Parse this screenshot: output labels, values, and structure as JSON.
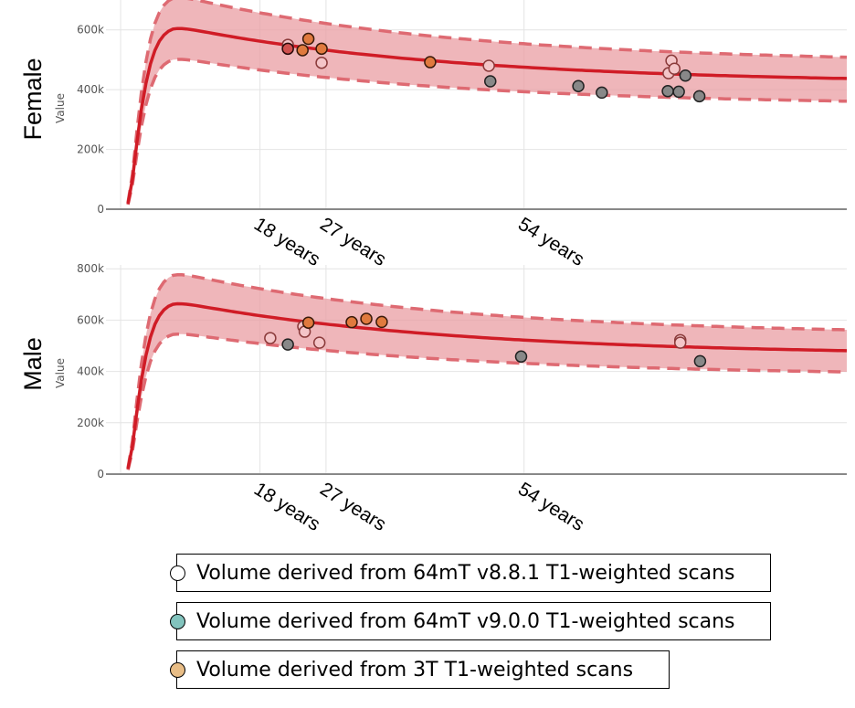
{
  "colors": {
    "curve": "#d01c26",
    "band_fill": "#ea9ea3",
    "band_edge": "#de6a72",
    "grid": "#e4e4e4",
    "axis": "#888888",
    "tick_text": "#555555",
    "legend_v881": "#ffffff",
    "legend_v900": "#82c3bd",
    "legend_3t": "#e8bd86"
  },
  "legend": [
    {
      "label": "Volume derived from 64mT v8.8.1 T1-weighted scans",
      "color": "#ffffff"
    },
    {
      "label": "Volume derived from 64mT v9.0.0 T1-weighted scans",
      "color": "#82c3bd"
    },
    {
      "label": "Volume derived from 3T T1-weighted scans",
      "color": "#e8bd86"
    }
  ],
  "chart_data": [
    {
      "type": "scatter",
      "panel_label": "Female",
      "ylabel": "Value",
      "ylim": [
        0,
        700000
      ],
      "xlim": [
        -3,
        98
      ],
      "yticks": [
        0,
        200000,
        400000,
        600000
      ],
      "ytick_labels": [
        "0",
        "200k",
        "400k",
        "600k"
      ],
      "xticks": [
        18,
        27,
        54
      ],
      "xtick_labels": [
        "18 years",
        "27 years",
        "54 years"
      ],
      "median_peak": 615000,
      "band_upper_peak": 720000,
      "band_lower_peak": 510000,
      "median_end": 420000,
      "band_upper_end": 488000,
      "band_lower_end": 347000,
      "points": [
        {
          "age": 21.8,
          "value": 550000,
          "fill": "#f4c5c8",
          "edge": "#8a3a3a"
        },
        {
          "age": 21.8,
          "value": 537000,
          "fill": "#d0504e",
          "edge": "#2a0a0a"
        },
        {
          "age": 23.8,
          "value": 532000,
          "fill": "#e07a3e",
          "edge": "#3a1a0a"
        },
        {
          "age": 24.6,
          "value": 570000,
          "fill": "#e07a3e",
          "edge": "#3a1a0a"
        },
        {
          "age": 26.4,
          "value": 537000,
          "fill": "#e07a3e",
          "edge": "#3a1a0a"
        },
        {
          "age": 26.4,
          "value": 490000,
          "fill": "#f4c5c8",
          "edge": "#8a3a3a"
        },
        {
          "age": 41.2,
          "value": 492000,
          "fill": "#e07a3e",
          "edge": "#3a1a0a"
        },
        {
          "age": 49.2,
          "value": 480000,
          "fill": "#f4c5c8",
          "edge": "#8a3a3a"
        },
        {
          "age": 49.4,
          "value": 428000,
          "fill": "#888888",
          "edge": "#222222"
        },
        {
          "age": 61.4,
          "value": 412000,
          "fill": "#888888",
          "edge": "#222222"
        },
        {
          "age": 64.6,
          "value": 390000,
          "fill": "#888888",
          "edge": "#222222"
        },
        {
          "age": 73.6,
          "value": 395000,
          "fill": "#888888",
          "edge": "#222222"
        },
        {
          "age": 73.7,
          "value": 455000,
          "fill": "#f4c5c8",
          "edge": "#8a3a3a"
        },
        {
          "age": 74.1,
          "value": 497000,
          "fill": "#f4c5c8",
          "edge": "#8a3a3a"
        },
        {
          "age": 74.5,
          "value": 470000,
          "fill": "#f4c5c8",
          "edge": "#8a3a3a"
        },
        {
          "age": 75.1,
          "value": 393000,
          "fill": "#888888",
          "edge": "#222222"
        },
        {
          "age": 76.0,
          "value": 447000,
          "fill": "#888888",
          "edge": "#222222"
        },
        {
          "age": 77.9,
          "value": 378000,
          "fill": "#888888",
          "edge": "#222222"
        }
      ]
    },
    {
      "type": "scatter",
      "panel_label": "Male",
      "ylabel": "Value",
      "ylim": [
        0,
        815000
      ],
      "xlim": [
        -3,
        98
      ],
      "yticks": [
        0,
        200000,
        400000,
        600000,
        800000
      ],
      "ytick_labels": [
        "0",
        "200k",
        "400k",
        "600k",
        "800k"
      ],
      "xticks": [
        18,
        27,
        54
      ],
      "xtick_labels": [
        "18 years",
        "27 years",
        "54 years"
      ],
      "median_peak": 675000,
      "band_upper_peak": 790000,
      "band_lower_peak": 555000,
      "median_end": 462000,
      "band_upper_end": 540000,
      "band_lower_end": 383000,
      "points": [
        {
          "age": 19.4,
          "value": 530000,
          "fill": "#f4c5c8",
          "edge": "#8a3a3a"
        },
        {
          "age": 21.8,
          "value": 505000,
          "fill": "#888888",
          "edge": "#222222"
        },
        {
          "age": 23.9,
          "value": 575000,
          "fill": "#f4c5c8",
          "edge": "#8a3a3a"
        },
        {
          "age": 24.1,
          "value": 555000,
          "fill": "#f4c5c8",
          "edge": "#8a3a3a"
        },
        {
          "age": 24.6,
          "value": 590000,
          "fill": "#e07a3e",
          "edge": "#3a1a0a"
        },
        {
          "age": 26.1,
          "value": 512000,
          "fill": "#f4c5c8",
          "edge": "#8a3a3a"
        },
        {
          "age": 30.5,
          "value": 592000,
          "fill": "#e07a3e",
          "edge": "#3a1a0a"
        },
        {
          "age": 32.5,
          "value": 605000,
          "fill": "#e07a3e",
          "edge": "#3a1a0a"
        },
        {
          "age": 34.6,
          "value": 593000,
          "fill": "#e07a3e",
          "edge": "#3a1a0a"
        },
        {
          "age": 53.6,
          "value": 458000,
          "fill": "#888888",
          "edge": "#222222"
        },
        {
          "age": 75.3,
          "value": 522000,
          "fill": "#f4c5c8",
          "edge": "#8a3a3a"
        },
        {
          "age": 75.3,
          "value": 512000,
          "fill": "#f4c5c8",
          "edge": "#8a3a3a"
        },
        {
          "age": 78.0,
          "value": 440000,
          "fill": "#888888",
          "edge": "#222222"
        }
      ]
    }
  ]
}
